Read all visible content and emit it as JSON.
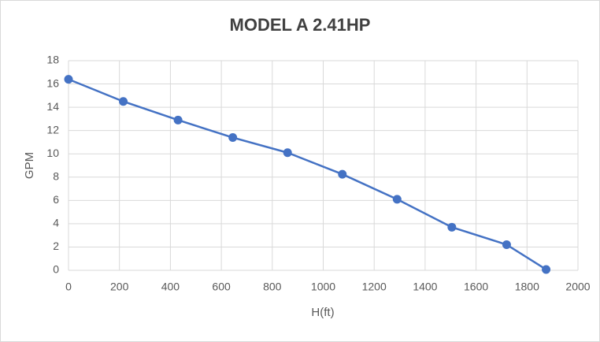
{
  "chart_data": {
    "type": "scatter",
    "title": "MODEL A 2.41HP",
    "x_label": "H(ft)",
    "y_label": "GPM",
    "x": [
      0,
      215,
      430,
      645,
      860,
      1075,
      1290,
      1505,
      1720,
      1875
    ],
    "series": [
      {
        "name": "GPM",
        "color": "#4472c4",
        "values": [
          16.4,
          14.5,
          12.9,
          11.4,
          10.1,
          8.25,
          6.1,
          3.7,
          2.2,
          0.07
        ]
      }
    ],
    "xlim": [
      0,
      2000
    ],
    "xticks": [
      0,
      200,
      400,
      600,
      800,
      1000,
      1200,
      1400,
      1600,
      1800,
      2000
    ],
    "ylim": [
      0,
      18
    ],
    "yticks": [
      0,
      2,
      4,
      6,
      8,
      10,
      12,
      14,
      16,
      18
    ],
    "grid": true,
    "lines": true,
    "markers": true
  }
}
